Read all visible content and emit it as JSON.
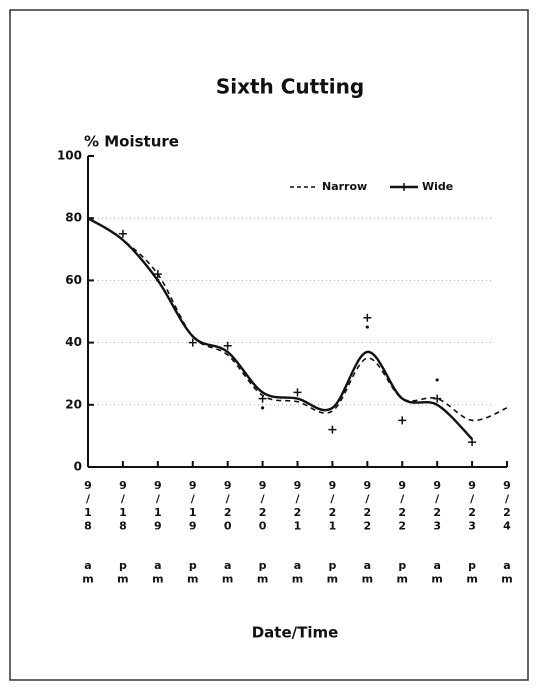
{
  "chart_data": {
    "type": "line",
    "title": "Sixth Cutting",
    "ylabel": "% Moisture",
    "xlabel": "Date/Time",
    "categories": [
      "9/18 am",
      "9/18 pm",
      "9/19 am",
      "9/19 pm",
      "9/20 am",
      "9/20 pm",
      "9/21 am",
      "9/21 pm",
      "9/22 am",
      "9/22 pm",
      "9/23 am",
      "9/23 pm",
      "9/24 am"
    ],
    "series": [
      {
        "name": "Narrow",
        "color": "#111",
        "dash": true,
        "values": [
          80,
          73,
          62,
          42,
          36,
          23,
          21,
          18,
          35,
          22,
          22,
          15,
          19
        ]
      },
      {
        "name": "Wide",
        "color": "#111",
        "dash": false,
        "values": [
          80,
          73,
          60,
          42,
          37,
          24,
          22,
          19,
          37,
          22,
          20,
          9,
          null
        ]
      }
    ],
    "observations": [
      {
        "marker": "+",
        "values": [
          null,
          75,
          62,
          40,
          39,
          22,
          24,
          12,
          48,
          15,
          22,
          8,
          null
        ]
      },
      {
        "marker": ".",
        "values": [
          null,
          null,
          60,
          null,
          null,
          19,
          null,
          null,
          45,
          null,
          28,
          null,
          null
        ]
      }
    ],
    "ylim": [
      0,
      100
    ],
    "yticks": [
      0,
      20,
      40,
      60,
      80,
      100
    ],
    "grid": true,
    "legend": "upper right"
  }
}
